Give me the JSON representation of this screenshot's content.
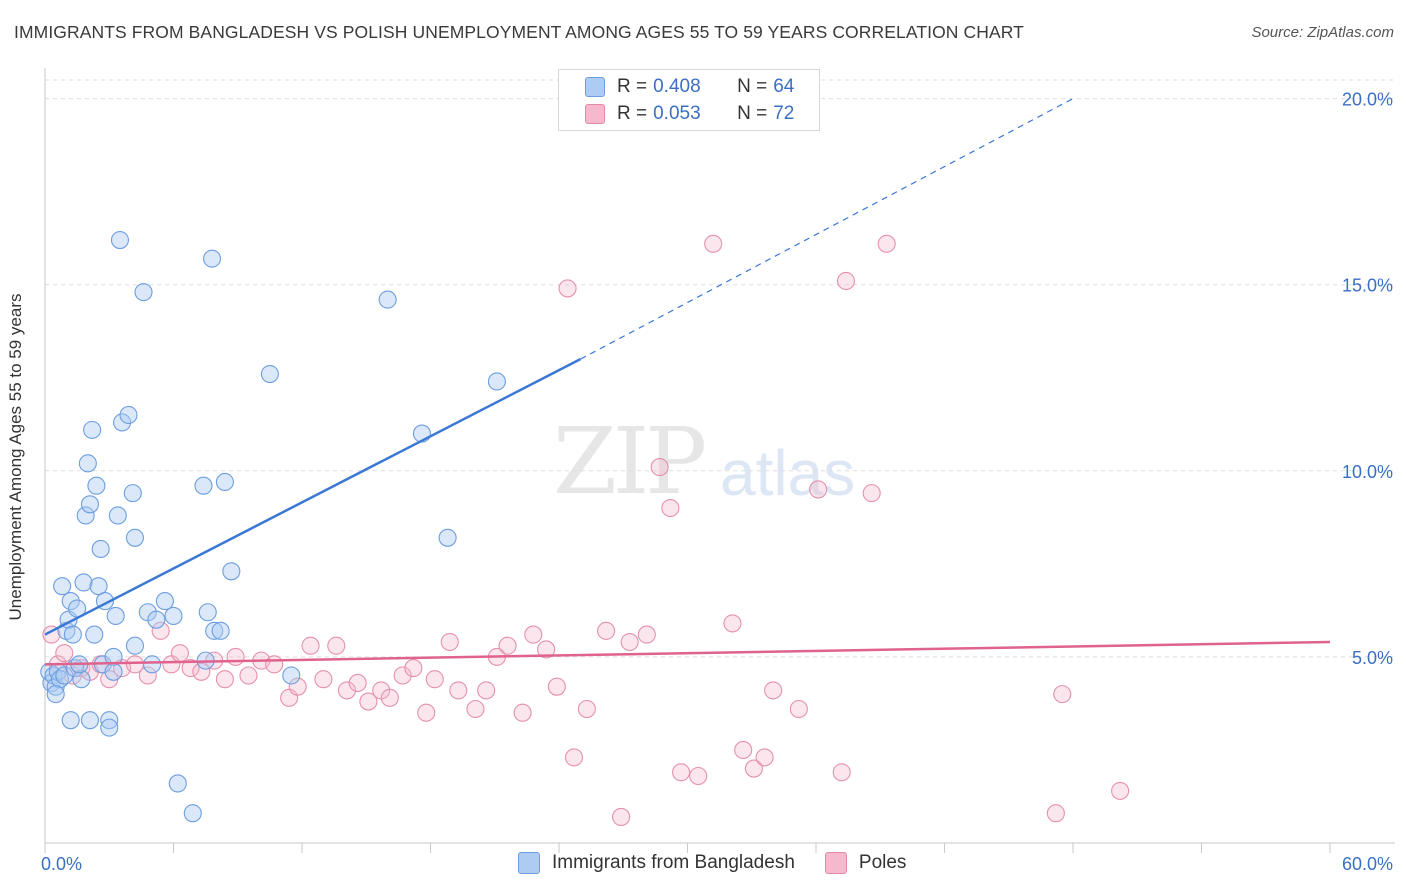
{
  "header": {
    "title": "IMMIGRANTS FROM BANGLADESH VS POLISH UNEMPLOYMENT AMONG AGES 55 TO 59 YEARS CORRELATION CHART",
    "source": "Source: ZipAtlas.com"
  },
  "watermark": {
    "zip": "ZIP",
    "atlas": "atlas"
  },
  "legend": {
    "blue": {
      "r_label": "R = ",
      "r_value": "0.408",
      "n_label": "N = ",
      "n_value": "64"
    },
    "pink": {
      "r_label": "R = ",
      "r_value": "0.053",
      "n_label": "N = ",
      "n_value": "72"
    }
  },
  "bottom_legend": {
    "blue": "Immigrants from Bangladesh",
    "pink": "Poles"
  },
  "colors": {
    "blue": "#3b78d4",
    "blue_fill": "#aecbf2",
    "pink": "#e0628e",
    "pink_fill": "#f5b8cc",
    "grid": "#dedede",
    "tick_text": "#3b6fc4"
  },
  "chart_data": {
    "type": "scatter",
    "title": "IMMIGRANTS FROM BANGLADESH VS POLISH UNEMPLOYMENT AMONG AGES 55 TO 59 YEARS CORRELATION CHART",
    "xlabel": "",
    "ylabel": "Unemployment Among Ages 55 to 59 years",
    "xlim": [
      0,
      60
    ],
    "ylim": [
      0,
      20.5
    ],
    "x_tick_labels": [
      "0.0%",
      "60.0%"
    ],
    "y_ticks": [
      5,
      10,
      15,
      20
    ],
    "y_tick_labels": [
      "5.0%",
      "10.0%",
      "15.0%",
      "20.0%"
    ],
    "grid": true,
    "legend_position": "top-center",
    "series": [
      {
        "name": "Immigrants from Bangladesh",
        "color": "#3b78d4",
        "r": 0.408,
        "n": 64,
        "trend": {
          "x0": 0,
          "y0": 5.6,
          "x1": 25,
          "y1": 13.0,
          "dashed_to_x": 48,
          "dashed_to_y": 20.0
        },
        "points": [
          [
            0.2,
            4.6
          ],
          [
            0.3,
            4.3
          ],
          [
            0.4,
            4.5
          ],
          [
            0.5,
            4.2
          ],
          [
            0.6,
            4.6
          ],
          [
            0.7,
            4.4
          ],
          [
            0.8,
            6.9
          ],
          [
            0.9,
            4.5
          ],
          [
            1.0,
            5.7
          ],
          [
            1.1,
            6.0
          ],
          [
            1.2,
            6.5
          ],
          [
            1.3,
            5.6
          ],
          [
            1.4,
            4.7
          ],
          [
            1.5,
            6.3
          ],
          [
            1.7,
            4.4
          ],
          [
            1.8,
            7.0
          ],
          [
            1.9,
            8.8
          ],
          [
            2.0,
            10.2
          ],
          [
            2.1,
            9.1
          ],
          [
            2.2,
            11.1
          ],
          [
            2.4,
            9.6
          ],
          [
            2.5,
            6.9
          ],
          [
            2.6,
            7.9
          ],
          [
            2.7,
            4.8
          ],
          [
            2.8,
            6.5
          ],
          [
            3.0,
            3.3
          ],
          [
            3.2,
            5.0
          ],
          [
            3.3,
            6.1
          ],
          [
            3.4,
            8.8
          ],
          [
            3.5,
            16.2
          ],
          [
            3.6,
            11.3
          ],
          [
            3.9,
            11.5
          ],
          [
            4.1,
            9.4
          ],
          [
            4.2,
            8.2
          ],
          [
            4.6,
            14.8
          ],
          [
            4.8,
            6.2
          ],
          [
            5.2,
            6.0
          ],
          [
            5.6,
            6.5
          ],
          [
            6.0,
            6.1
          ],
          [
            6.2,
            1.6
          ],
          [
            6.9,
            0.8
          ],
          [
            7.4,
            9.6
          ],
          [
            7.6,
            6.2
          ],
          [
            7.8,
            15.7
          ],
          [
            7.9,
            5.7
          ],
          [
            8.2,
            5.7
          ],
          [
            8.4,
            9.7
          ],
          [
            8.7,
            7.3
          ],
          [
            10.5,
            12.6
          ],
          [
            16.0,
            14.6
          ],
          [
            17.6,
            11.0
          ],
          [
            18.8,
            8.2
          ],
          [
            21.1,
            12.4
          ],
          [
            0.5,
            4.0
          ],
          [
            1.2,
            3.3
          ],
          [
            2.1,
            3.3
          ],
          [
            3.0,
            3.1
          ],
          [
            1.6,
            4.8
          ],
          [
            2.3,
            5.6
          ],
          [
            7.5,
            4.9
          ],
          [
            11.5,
            4.5
          ],
          [
            4.2,
            5.3
          ],
          [
            5.0,
            4.8
          ],
          [
            3.2,
            4.6
          ]
        ]
      },
      {
        "name": "Poles",
        "color": "#e0628e",
        "r": 0.053,
        "n": 72,
        "trend": {
          "x0": 0,
          "y0": 4.8,
          "x1": 60,
          "y1": 5.4
        },
        "points": [
          [
            0.3,
            5.6
          ],
          [
            0.6,
            4.8
          ],
          [
            0.9,
            5.1
          ],
          [
            1.3,
            4.5
          ],
          [
            1.7,
            4.7
          ],
          [
            2.1,
            4.6
          ],
          [
            2.6,
            4.8
          ],
          [
            3.0,
            4.4
          ],
          [
            3.6,
            4.7
          ],
          [
            4.2,
            4.8
          ],
          [
            4.8,
            4.5
          ],
          [
            5.4,
            5.7
          ],
          [
            5.9,
            4.8
          ],
          [
            6.3,
            5.1
          ],
          [
            6.8,
            4.7
          ],
          [
            7.3,
            4.6
          ],
          [
            7.9,
            4.9
          ],
          [
            8.4,
            4.4
          ],
          [
            8.9,
            5.0
          ],
          [
            9.5,
            4.5
          ],
          [
            10.1,
            4.9
          ],
          [
            10.7,
            4.8
          ],
          [
            11.4,
            3.9
          ],
          [
            11.8,
            4.2
          ],
          [
            12.4,
            5.3
          ],
          [
            13.0,
            4.4
          ],
          [
            13.6,
            5.3
          ],
          [
            14.1,
            4.1
          ],
          [
            14.6,
            4.3
          ],
          [
            15.1,
            3.8
          ],
          [
            15.7,
            4.1
          ],
          [
            16.1,
            3.9
          ],
          [
            16.7,
            4.5
          ],
          [
            17.2,
            4.7
          ],
          [
            17.8,
            3.5
          ],
          [
            18.2,
            4.4
          ],
          [
            18.9,
            5.4
          ],
          [
            19.3,
            4.1
          ],
          [
            20.1,
            3.6
          ],
          [
            20.6,
            4.1
          ],
          [
            21.1,
            5.0
          ],
          [
            21.6,
            5.3
          ],
          [
            22.3,
            3.5
          ],
          [
            22.8,
            5.6
          ],
          [
            23.4,
            5.2
          ],
          [
            23.9,
            4.2
          ],
          [
            24.7,
            2.3
          ],
          [
            25.3,
            3.6
          ],
          [
            26.2,
            5.7
          ],
          [
            26.9,
            0.7
          ],
          [
            27.3,
            5.4
          ],
          [
            28.1,
            5.6
          ],
          [
            28.7,
            10.1
          ],
          [
            29.2,
            9.0
          ],
          [
            29.7,
            1.9
          ],
          [
            30.5,
            1.8
          ],
          [
            31.2,
            16.1
          ],
          [
            32.1,
            5.9
          ],
          [
            32.6,
            2.5
          ],
          [
            33.1,
            2.0
          ],
          [
            33.6,
            2.3
          ],
          [
            34.0,
            4.1
          ],
          [
            35.2,
            3.6
          ],
          [
            36.1,
            9.5
          ],
          [
            37.2,
            1.9
          ],
          [
            37.4,
            15.1
          ],
          [
            38.6,
            9.4
          ],
          [
            39.3,
            16.1
          ],
          [
            47.2,
            0.8
          ],
          [
            47.5,
            4.0
          ],
          [
            50.2,
            1.4
          ],
          [
            24.4,
            14.9
          ]
        ]
      }
    ]
  },
  "axes": {
    "y_label": "Unemployment Among Ages 55 to 59 years",
    "x_min_label": "0.0%",
    "x_max_label": "60.0%"
  }
}
